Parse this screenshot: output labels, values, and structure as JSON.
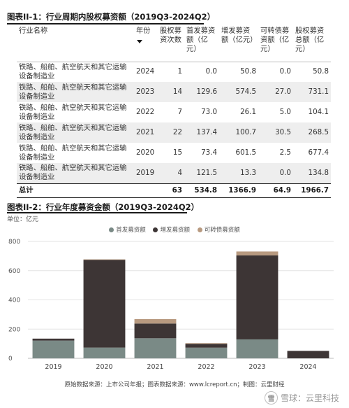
{
  "table_section": {
    "title": "图表II-1：行业周期内股权募资额（2019Q3-2024Q2）",
    "headers": {
      "industry": "行业名称",
      "year": "年份",
      "count": "股权募资次数",
      "ipo": "首发募资额（亿元）",
      "add": "增发募资额（亿元）",
      "convert": "可转债募资额（亿元）",
      "total": "股权募资总额（亿元）"
    },
    "rows": [
      {
        "industry": "铁路、船舶、航空航天和其它运输设备制造业",
        "year": "2024",
        "count": "1",
        "ipo": "0.0",
        "add": "50.8",
        "convert": "0.0",
        "total": "50.8"
      },
      {
        "industry": "铁路、船舶、航空航天和其它运输设备制造业",
        "year": "2023",
        "count": "14",
        "ipo": "129.6",
        "add": "574.5",
        "convert": "27.0",
        "total": "731.1"
      },
      {
        "industry": "铁路、船舶、航空航天和其它运输设备制造业",
        "year": "2022",
        "count": "7",
        "ipo": "73.0",
        "add": "26.1",
        "convert": "5.0",
        "total": "104.1"
      },
      {
        "industry": "铁路、船舶、航空航天和其它运输设备制造业",
        "year": "2021",
        "count": "22",
        "ipo": "137.4",
        "add": "100.7",
        "convert": "30.5",
        "total": "268.5"
      },
      {
        "industry": "铁路、船舶、航空航天和其它运输设备制造业",
        "year": "2020",
        "count": "15",
        "ipo": "73.4",
        "add": "601.5",
        "convert": "2.5",
        "total": "677.4"
      },
      {
        "industry": "铁路、船舶、航空航天和其它运输设备制造业",
        "year": "2019",
        "count": "4",
        "ipo": "121.5",
        "add": "13.3",
        "convert": "0.0",
        "total": "134.8"
      }
    ],
    "total_row": {
      "label": "总计",
      "count": "63",
      "ipo": "534.8",
      "add": "1366.9",
      "convert": "64.9",
      "total": "1966.7"
    }
  },
  "chart_section": {
    "title": "图表II-2：行业年度募资金额（2019Q3-2024Q2）",
    "unit": "单位：亿元",
    "source": "原始数据来源：上市公司年报；图表数据来源：www.lcreport.cn；制图：云里财经"
  },
  "chart_data": {
    "type": "bar",
    "stacked": true,
    "categories": [
      "2019",
      "2020",
      "2021",
      "2022",
      "2023",
      "2024"
    ],
    "series": [
      {
        "name": "首发募资额",
        "color": "#7a8a86",
        "values": [
          121.5,
          73.4,
          137.4,
          73.0,
          129.6,
          0.0
        ]
      },
      {
        "name": "增发募资额",
        "color": "#3d3535",
        "values": [
          13.3,
          601.5,
          100.7,
          26.1,
          574.5,
          50.8
        ]
      },
      {
        "name": "可转债募资额",
        "color": "#b89a80",
        "values": [
          0.0,
          2.5,
          30.5,
          5.0,
          27.0,
          0.0
        ]
      }
    ],
    "ylim": [
      0,
      800
    ],
    "yticks": [
      "0",
      "200",
      "400",
      "600",
      "800"
    ],
    "grid": true,
    "legend_position": "top"
  },
  "watermark": {
    "logo_char": "雪",
    "text": "雪球：云里科技"
  }
}
